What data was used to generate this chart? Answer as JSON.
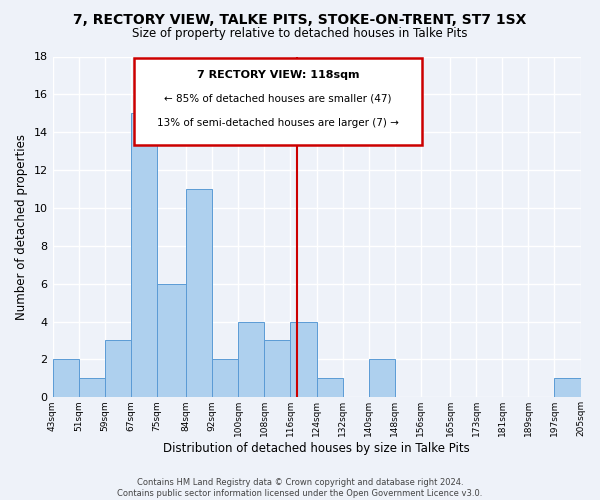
{
  "title": "7, RECTORY VIEW, TALKE PITS, STOKE-ON-TRENT, ST7 1SX",
  "subtitle": "Size of property relative to detached houses in Talke Pits",
  "xlabel": "Distribution of detached houses by size in Talke Pits",
  "ylabel": "Number of detached properties",
  "bins": [
    43,
    51,
    59,
    67,
    75,
    84,
    92,
    100,
    108,
    116,
    124,
    132,
    140,
    148,
    156,
    165,
    173,
    181,
    189,
    197,
    205
  ],
  "counts": [
    2,
    1,
    3,
    15,
    6,
    11,
    2,
    4,
    3,
    4,
    1,
    0,
    2,
    0,
    0,
    0,
    0,
    0,
    0,
    1
  ],
  "tick_labels": [
    "43sqm",
    "51sqm",
    "59sqm",
    "67sqm",
    "75sqm",
    "84sqm",
    "92sqm",
    "100sqm",
    "108sqm",
    "116sqm",
    "124sqm",
    "132sqm",
    "140sqm",
    "148sqm",
    "156sqm",
    "165sqm",
    "173sqm",
    "181sqm",
    "189sqm",
    "197sqm",
    "205sqm"
  ],
  "bar_color": "#aed0ee",
  "bar_edge_color": "#5b9bd5",
  "vline_x": 118,
  "vline_color": "#cc0000",
  "ylim": [
    0,
    18
  ],
  "yticks": [
    0,
    2,
    4,
    6,
    8,
    10,
    12,
    14,
    16,
    18
  ],
  "annotation_title": "7 RECTORY VIEW: 118sqm",
  "annotation_line1": "← 85% of detached houses are smaller (47)",
  "annotation_line2": "13% of semi-detached houses are larger (7) →",
  "footer1": "Contains HM Land Registry data © Crown copyright and database right 2024.",
  "footer2": "Contains public sector information licensed under the Open Government Licence v3.0.",
  "background_color": "#eef2f9"
}
